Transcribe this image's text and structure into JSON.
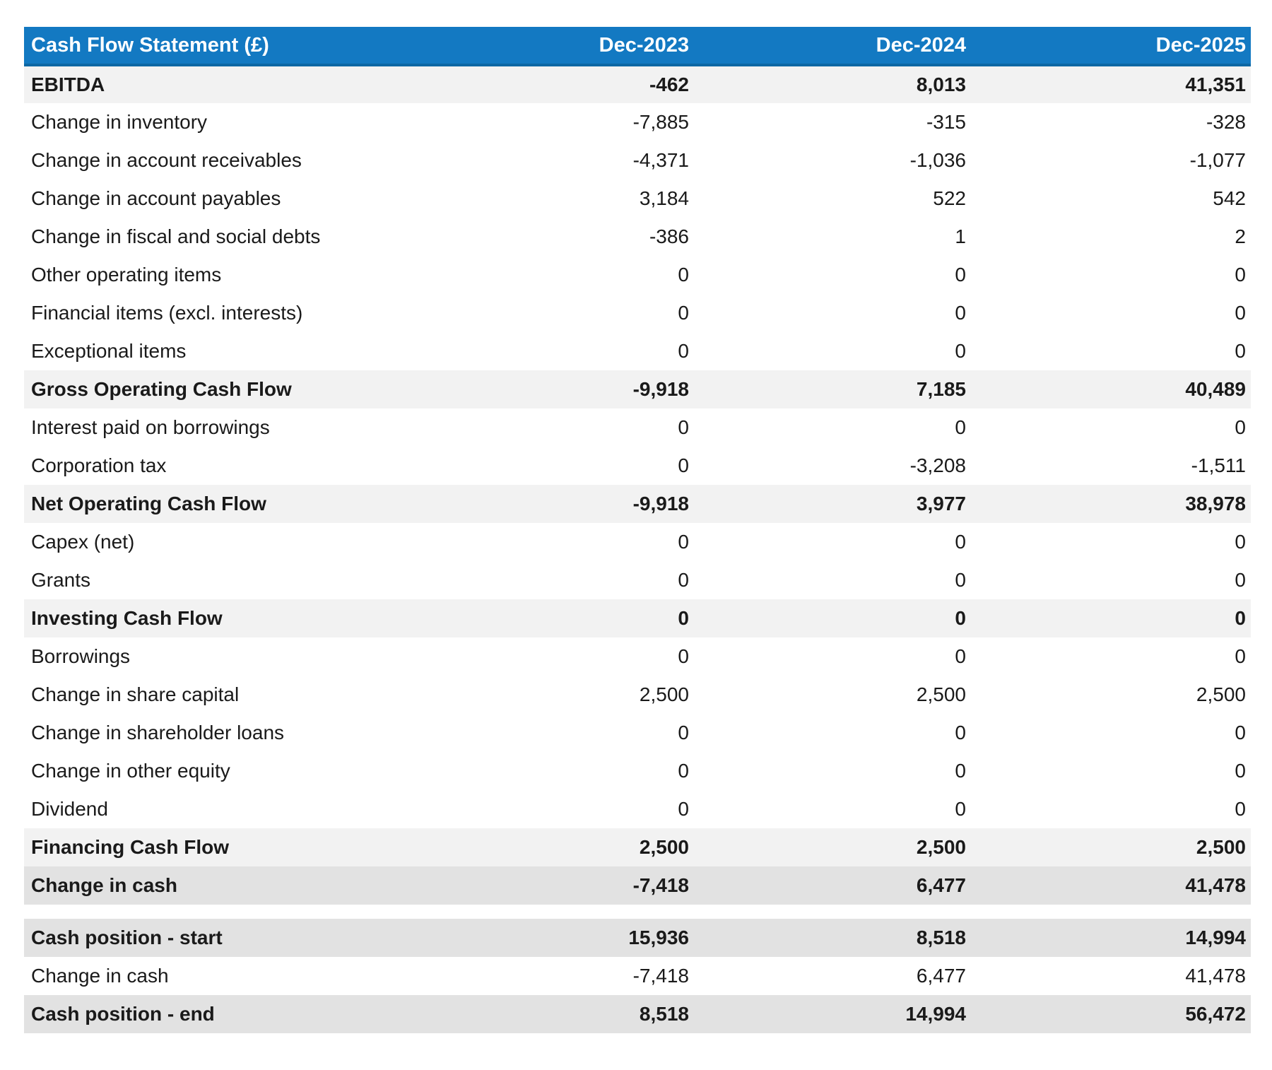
{
  "table": {
    "title": "Cash Flow Statement (£)",
    "columns": [
      "Dec-2023",
      "Dec-2024",
      "Dec-2025"
    ],
    "rows": [
      {
        "label": "EBITDA",
        "values": [
          "-462",
          "8,013",
          "41,351"
        ],
        "style": "subtotal"
      },
      {
        "label": "Change in inventory",
        "values": [
          "-7,885",
          "-315",
          "-328"
        ],
        "style": "plain"
      },
      {
        "label": "Change in account receivables",
        "values": [
          "-4,371",
          "-1,036",
          "-1,077"
        ],
        "style": "plain"
      },
      {
        "label": "Change in account payables",
        "values": [
          "3,184",
          "522",
          "542"
        ],
        "style": "plain"
      },
      {
        "label": "Change in fiscal and social debts",
        "values": [
          "-386",
          "1",
          "2"
        ],
        "style": "plain"
      },
      {
        "label": "Other operating items",
        "values": [
          "0",
          "0",
          "0"
        ],
        "style": "plain"
      },
      {
        "label": "Financial items (excl. interests)",
        "values": [
          "0",
          "0",
          "0"
        ],
        "style": "plain"
      },
      {
        "label": "Exceptional items",
        "values": [
          "0",
          "0",
          "0"
        ],
        "style": "plain"
      },
      {
        "label": "Gross Operating Cash Flow",
        "values": [
          "-9,918",
          "7,185",
          "40,489"
        ],
        "style": "subtotal"
      },
      {
        "label": "Interest paid on borrowings",
        "values": [
          "0",
          "0",
          "0"
        ],
        "style": "plain"
      },
      {
        "label": "Corporation tax",
        "values": [
          "0",
          "-3,208",
          "-1,511"
        ],
        "style": "plain"
      },
      {
        "label": "Net Operating Cash Flow",
        "values": [
          "-9,918",
          "3,977",
          "38,978"
        ],
        "style": "subtotal"
      },
      {
        "label": "Capex (net)",
        "values": [
          "0",
          "0",
          "0"
        ],
        "style": "plain"
      },
      {
        "label": "Grants",
        "values": [
          "0",
          "0",
          "0"
        ],
        "style": "plain"
      },
      {
        "label": "Investing Cash Flow",
        "values": [
          "0",
          "0",
          "0"
        ],
        "style": "subtotal"
      },
      {
        "label": "Borrowings",
        "values": [
          "0",
          "0",
          "0"
        ],
        "style": "plain"
      },
      {
        "label": "Change in share capital",
        "values": [
          "2,500",
          "2,500",
          "2,500"
        ],
        "style": "plain"
      },
      {
        "label": "Change in shareholder loans",
        "values": [
          "0",
          "0",
          "0"
        ],
        "style": "plain"
      },
      {
        "label": "Change in other equity",
        "values": [
          "0",
          "0",
          "0"
        ],
        "style": "plain"
      },
      {
        "label": "Dividend",
        "values": [
          "0",
          "0",
          "0"
        ],
        "style": "plain"
      },
      {
        "label": "Financing Cash Flow",
        "values": [
          "2,500",
          "2,500",
          "2,500"
        ],
        "style": "subtotal"
      },
      {
        "label": "Change in cash",
        "values": [
          "-7,418",
          "6,477",
          "41,478"
        ],
        "style": "summary"
      },
      {
        "style": "spacer"
      },
      {
        "label": "Cash position - start",
        "values": [
          "15,936",
          "8,518",
          "14,994"
        ],
        "style": "summary"
      },
      {
        "label": "Change in cash",
        "values": [
          "-7,418",
          "6,477",
          "41,478"
        ],
        "style": "plain"
      },
      {
        "label": "Cash position - end",
        "values": [
          "8,518",
          "14,994",
          "56,472"
        ],
        "style": "summary"
      }
    ]
  },
  "colors": {
    "header_bg": "#1379c2",
    "header_border": "#0d67a4",
    "header_text": "#ffffff",
    "subtotal_row_bg": "#f2f2f2",
    "summary_row_bg": "#e2e2e2",
    "body_row_bg": "#ffffff",
    "text": "#1a1a1a"
  }
}
